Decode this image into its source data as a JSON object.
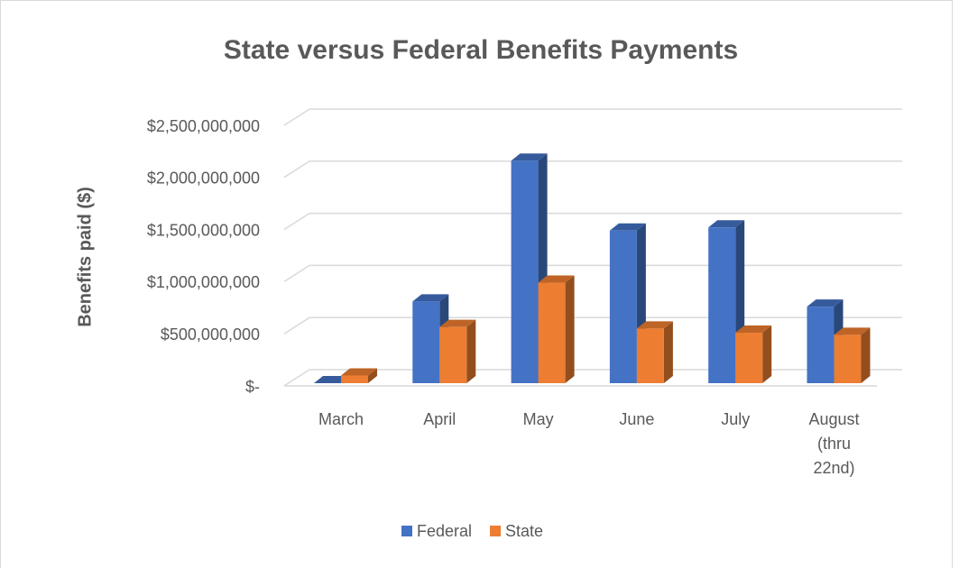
{
  "chart_data": {
    "type": "bar3d",
    "title": "State versus Federal Benefits Payments",
    "y_axis_label": "Benefits paid ($)",
    "categories": [
      "March",
      "April",
      "May",
      "June",
      "July",
      "August (thru 22nd)"
    ],
    "series": [
      {
        "name": "Federal",
        "color": "#4472c4",
        "values": [
          5000000,
          810000000,
          2160000000,
          1490000000,
          1520000000,
          760000000
        ]
      },
      {
        "name": "State",
        "color": "#ed7d31",
        "values": [
          100000000,
          565000000,
          990000000,
          550000000,
          510000000,
          490000000
        ]
      }
    ],
    "ylim": [
      0,
      2500000000
    ],
    "yticks": [
      {
        "value": 0,
        "label": "$-"
      },
      {
        "value": 500000000,
        "label": "$500,000,000"
      },
      {
        "value": 1000000000,
        "label": "$1,000,000,000"
      },
      {
        "value": 1500000000,
        "label": "$1,500,000,000"
      },
      {
        "value": 2000000000,
        "label": "$2,000,000,000"
      },
      {
        "value": 2500000000,
        "label": "$2,500,000,000"
      }
    ],
    "grid": true,
    "legend": "bottom"
  }
}
